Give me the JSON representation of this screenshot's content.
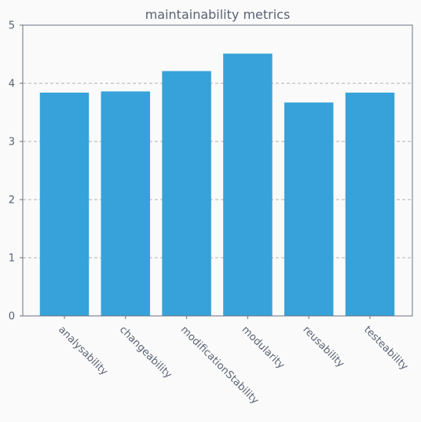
{
  "chart_data": {
    "type": "bar",
    "title": "maintainability metrics",
    "xlabel": "",
    "ylabel": "",
    "categories": [
      "analysability",
      "changeability",
      "modificationStability",
      "modularity",
      "reusability",
      "testeability"
    ],
    "values": [
      3.84,
      3.86,
      4.21,
      4.51,
      3.67,
      3.84
    ],
    "ylim": [
      0,
      5
    ],
    "yticks": [
      0,
      1,
      2,
      3,
      4,
      5
    ],
    "grid": "y-dashed",
    "bar_color": "#37a2d9",
    "text_color": "#5a6273",
    "grid_color": "#b0b0b0",
    "axis_color": "#6b7280",
    "background": "#fafafa"
  }
}
